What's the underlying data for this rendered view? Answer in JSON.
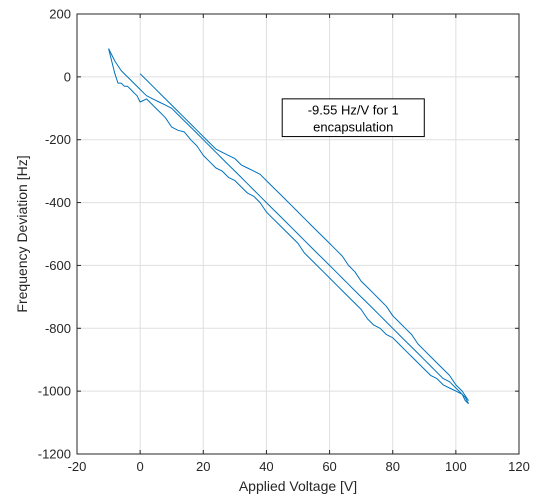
{
  "chart_data": {
    "type": "line",
    "title": "",
    "xlabel": "Applied Voltage [V]",
    "ylabel": "Frequency Deviation [Hz]",
    "xlim": [
      -20,
      120
    ],
    "ylim": [
      -1200,
      200
    ],
    "xticks": [
      -20,
      0,
      20,
      40,
      60,
      80,
      100,
      120
    ],
    "yticks": [
      -1200,
      -1000,
      -800,
      -600,
      -400,
      -200,
      0,
      200
    ],
    "xtick_labels": [
      "-20",
      "0",
      "20",
      "40",
      "60",
      "80",
      "100",
      "120"
    ],
    "ytick_labels": [
      "-1200",
      "-1000",
      "-800",
      "-600",
      "-400",
      "-200",
      "0",
      "200"
    ],
    "grid": true,
    "line_color": "#0072BD",
    "annotation": {
      "line1": "-9.55 Hz/V for 1",
      "line2": "encapsulation",
      "x_range": [
        45,
        90
      ],
      "y_range": [
        -190,
        -70
      ]
    },
    "series": [
      {
        "values": [
          [
            -10,
            90
          ],
          [
            -9,
            50
          ],
          [
            -8,
            10
          ],
          [
            -7,
            -20
          ],
          [
            -6,
            -20
          ],
          [
            -5,
            -30
          ],
          [
            -4,
            -30
          ],
          [
            -3,
            -40
          ],
          [
            -2,
            -50
          ],
          [
            -1,
            -60
          ],
          [
            0,
            -80
          ],
          [
            2,
            -70
          ],
          [
            4,
            -90
          ],
          [
            6,
            -110
          ],
          [
            8,
            -130
          ],
          [
            10,
            -160
          ],
          [
            12,
            -170
          ],
          [
            14,
            -175
          ],
          [
            16,
            -200
          ],
          [
            18,
            -220
          ],
          [
            20,
            -250
          ],
          [
            22,
            -270
          ],
          [
            24,
            -290
          ],
          [
            26,
            -300
          ],
          [
            28,
            -320
          ],
          [
            30,
            -330
          ],
          [
            32,
            -350
          ],
          [
            34,
            -370
          ],
          [
            36,
            -380
          ],
          [
            38,
            -400
          ],
          [
            40,
            -430
          ],
          [
            42,
            -450
          ],
          [
            44,
            -470
          ],
          [
            46,
            -490
          ],
          [
            48,
            -510
          ],
          [
            50,
            -530
          ],
          [
            52,
            -560
          ],
          [
            54,
            -580
          ],
          [
            56,
            -600
          ],
          [
            58,
            -620
          ],
          [
            60,
            -640
          ],
          [
            62,
            -660
          ],
          [
            64,
            -680
          ],
          [
            66,
            -700
          ],
          [
            68,
            -720
          ],
          [
            70,
            -740
          ],
          [
            72,
            -770
          ],
          [
            74,
            -790
          ],
          [
            76,
            -800
          ],
          [
            78,
            -820
          ],
          [
            80,
            -830
          ],
          [
            82,
            -850
          ],
          [
            84,
            -870
          ],
          [
            86,
            -890
          ],
          [
            88,
            -910
          ],
          [
            90,
            -930
          ],
          [
            92,
            -950
          ],
          [
            94,
            -960
          ],
          [
            96,
            -980
          ],
          [
            98,
            -990
          ],
          [
            100,
            -1000
          ],
          [
            102,
            -1010
          ],
          [
            103,
            -1030
          ],
          [
            104,
            -1040
          ]
        ]
      },
      {
        "values": [
          [
            104,
            -1040
          ],
          [
            103,
            -1020
          ],
          [
            102,
            -1010
          ],
          [
            100,
            -990
          ],
          [
            98,
            -970
          ],
          [
            96,
            -960
          ],
          [
            94,
            -940
          ],
          [
            92,
            -920
          ],
          [
            90,
            -900
          ],
          [
            88,
            -880
          ],
          [
            86,
            -860
          ],
          [
            84,
            -840
          ],
          [
            82,
            -820
          ],
          [
            80,
            -800
          ],
          [
            78,
            -780
          ],
          [
            76,
            -760
          ],
          [
            74,
            -740
          ],
          [
            72,
            -720
          ],
          [
            70,
            -700
          ],
          [
            68,
            -680
          ],
          [
            66,
            -660
          ],
          [
            64,
            -640
          ],
          [
            62,
            -620
          ],
          [
            60,
            -600
          ],
          [
            58,
            -580
          ],
          [
            56,
            -560
          ],
          [
            54,
            -540
          ],
          [
            52,
            -520
          ],
          [
            50,
            -500
          ],
          [
            48,
            -480
          ],
          [
            46,
            -460
          ],
          [
            44,
            -440
          ],
          [
            42,
            -420
          ],
          [
            40,
            -400
          ],
          [
            38,
            -380
          ],
          [
            36,
            -360
          ],
          [
            34,
            -340
          ],
          [
            32,
            -320
          ],
          [
            30,
            -300
          ],
          [
            28,
            -280
          ],
          [
            26,
            -260
          ],
          [
            24,
            -240
          ],
          [
            22,
            -220
          ],
          [
            20,
            -200
          ],
          [
            18,
            -180
          ],
          [
            16,
            -160
          ],
          [
            14,
            -140
          ],
          [
            12,
            -120
          ],
          [
            10,
            -100
          ],
          [
            8,
            -90
          ],
          [
            6,
            -80
          ],
          [
            4,
            -70
          ],
          [
            2,
            -60
          ],
          [
            0,
            -40
          ],
          [
            -2,
            -20
          ],
          [
            -4,
            0
          ],
          [
            -6,
            20
          ],
          [
            -8,
            50
          ],
          [
            -10,
            90
          ]
        ]
      },
      {
        "values": [
          [
            0,
            10
          ],
          [
            1,
            0
          ],
          [
            2,
            -10
          ],
          [
            4,
            -30
          ],
          [
            6,
            -50
          ],
          [
            8,
            -70
          ],
          [
            10,
            -90
          ],
          [
            12,
            -110
          ],
          [
            14,
            -130
          ],
          [
            16,
            -150
          ],
          [
            18,
            -170
          ],
          [
            20,
            -190
          ],
          [
            22,
            -210
          ],
          [
            24,
            -230
          ],
          [
            26,
            -240
          ],
          [
            28,
            -250
          ],
          [
            30,
            -260
          ],
          [
            32,
            -280
          ],
          [
            34,
            -290
          ],
          [
            36,
            -300
          ],
          [
            38,
            -310
          ],
          [
            40,
            -330
          ],
          [
            42,
            -350
          ],
          [
            44,
            -370
          ],
          [
            46,
            -390
          ],
          [
            48,
            -410
          ],
          [
            50,
            -430
          ],
          [
            52,
            -450
          ],
          [
            54,
            -470
          ],
          [
            56,
            -490
          ],
          [
            58,
            -510
          ],
          [
            60,
            -530
          ],
          [
            62,
            -550
          ],
          [
            64,
            -570
          ],
          [
            66,
            -600
          ],
          [
            68,
            -620
          ],
          [
            70,
            -650
          ],
          [
            72,
            -670
          ],
          [
            74,
            -690
          ],
          [
            76,
            -710
          ],
          [
            78,
            -730
          ],
          [
            80,
            -760
          ],
          [
            82,
            -780
          ],
          [
            84,
            -800
          ],
          [
            86,
            -820
          ],
          [
            88,
            -850
          ],
          [
            90,
            -870
          ],
          [
            92,
            -890
          ],
          [
            94,
            -910
          ],
          [
            96,
            -930
          ],
          [
            98,
            -950
          ],
          [
            100,
            -980
          ],
          [
            102,
            -1000
          ],
          [
            104,
            -1030
          ]
        ]
      }
    ]
  }
}
